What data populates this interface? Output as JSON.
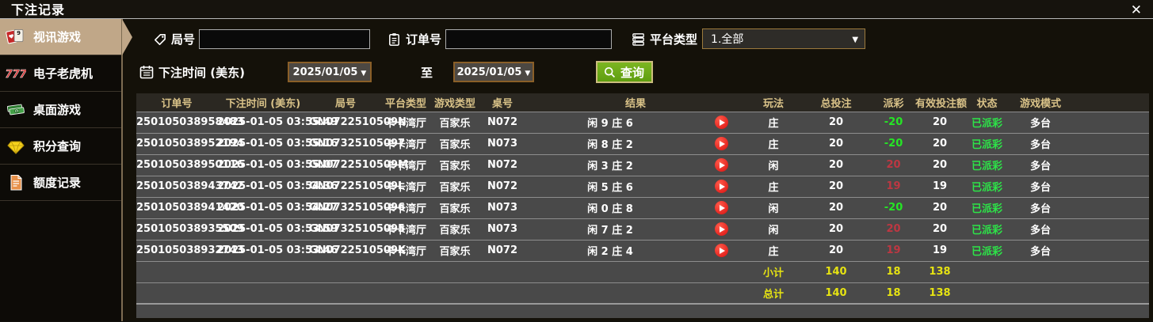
{
  "window": {
    "title": "下注记录",
    "close_glyph": "✕"
  },
  "sidebar": {
    "items": [
      {
        "label": "视讯游戏",
        "icon": "playing-cards-icon",
        "active": true
      },
      {
        "label": "电子老虎机",
        "icon": "slot-777-icon",
        "active": false
      },
      {
        "label": "桌面游戏",
        "icon": "money-icon",
        "active": false
      },
      {
        "label": "积分查询",
        "icon": "diamond-icon",
        "active": false
      },
      {
        "label": "额度记录",
        "icon": "document-icon",
        "active": false
      }
    ]
  },
  "filters": {
    "round_label": "局号",
    "round_value": "",
    "order_label": "订单号",
    "order_value": "",
    "platform_label": "平台类型",
    "platform_value": "1.全部",
    "time_label": "下注时间 (美东)",
    "date_from": "2025/01/05",
    "to_label": "至",
    "date_to": "2025/01/05",
    "search_label": "查询"
  },
  "table": {
    "headers": [
      "订单号",
      "下注时间 (美东)",
      "局号",
      "平台类型",
      "游戏类型",
      "桌号",
      "结果",
      "玩法",
      "总投注",
      "派彩",
      "有效投注额",
      "状态",
      "游戏模式"
    ],
    "rows": [
      {
        "order": "250105038958483",
        "time": "2025-01-05 03:55:49",
        "round": "GN0722510509N",
        "platform": "卡卡湾厅",
        "game": "百家乐",
        "table_no": "N072",
        "result": "闲 9 庄 6",
        "play": "庄",
        "total": "20",
        "payout": "-20",
        "valid": "20",
        "status": "已派彩",
        "mode": "多台"
      },
      {
        "order": "250105038952194",
        "time": "2025-01-05 03:55:16",
        "round": "GN07325105097",
        "platform": "卡卡湾厅",
        "game": "百家乐",
        "table_no": "N073",
        "result": "闲 8 庄 2",
        "play": "庄",
        "total": "20",
        "payout": "-20",
        "valid": "20",
        "status": "已派彩",
        "mode": "多台"
      },
      {
        "order": "250105038950116",
        "time": "2025-01-05 03:55:07",
        "round": "GN0722510509M",
        "platform": "卡卡湾厅",
        "game": "百家乐",
        "table_no": "N072",
        "result": "闲 3 庄 2",
        "play": "闲",
        "total": "20",
        "payout": "20",
        "valid": "20",
        "status": "已派彩",
        "mode": "多台"
      },
      {
        "order": "250105038943742",
        "time": "2025-01-05 03:54:36",
        "round": "GN0722510509L",
        "platform": "卡卡湾厅",
        "game": "百家乐",
        "table_no": "N072",
        "result": "闲 5 庄 6",
        "play": "庄",
        "total": "20",
        "payout": "19",
        "valid": "19",
        "status": "已派彩",
        "mode": "多台"
      },
      {
        "order": "250105038941420",
        "time": "2025-01-05 03:54:27",
        "round": "GN07325105096",
        "platform": "卡卡湾厅",
        "game": "百家乐",
        "table_no": "N073",
        "result": "闲 0 庄 8",
        "play": "闲",
        "total": "20",
        "payout": "-20",
        "valid": "20",
        "status": "已派彩",
        "mode": "多台"
      },
      {
        "order": "250105038935509",
        "time": "2025-01-05 03:53:59",
        "round": "GN07325105095",
        "platform": "卡卡湾厅",
        "game": "百家乐",
        "table_no": "N073",
        "result": "闲 7 庄 2",
        "play": "闲",
        "total": "20",
        "payout": "20",
        "valid": "20",
        "status": "已派彩",
        "mode": "多台"
      },
      {
        "order": "250105038932743",
        "time": "2025-01-05 03:53:46",
        "round": "GN0722510509K",
        "platform": "卡卡湾厅",
        "game": "百家乐",
        "table_no": "N072",
        "result": "闲 2 庄 4",
        "play": "庄",
        "total": "20",
        "payout": "19",
        "valid": "19",
        "status": "已派彩",
        "mode": "多台"
      }
    ],
    "subtotal": {
      "label": "小计",
      "total": "140",
      "payout": "18",
      "valid": "138"
    },
    "grand_total": {
      "label": "总计",
      "total": "140",
      "payout": "18",
      "valid": "138"
    }
  },
  "colors": {
    "sidebar_active": "#c0a788",
    "header_text": "#d9c288",
    "win_red": "#bd3742",
    "loss_green": "#25e625",
    "status_green": "#2de348",
    "total_yellow": "#e6e312",
    "query_green": "#6faa19",
    "date_border": "#8a5f28"
  }
}
